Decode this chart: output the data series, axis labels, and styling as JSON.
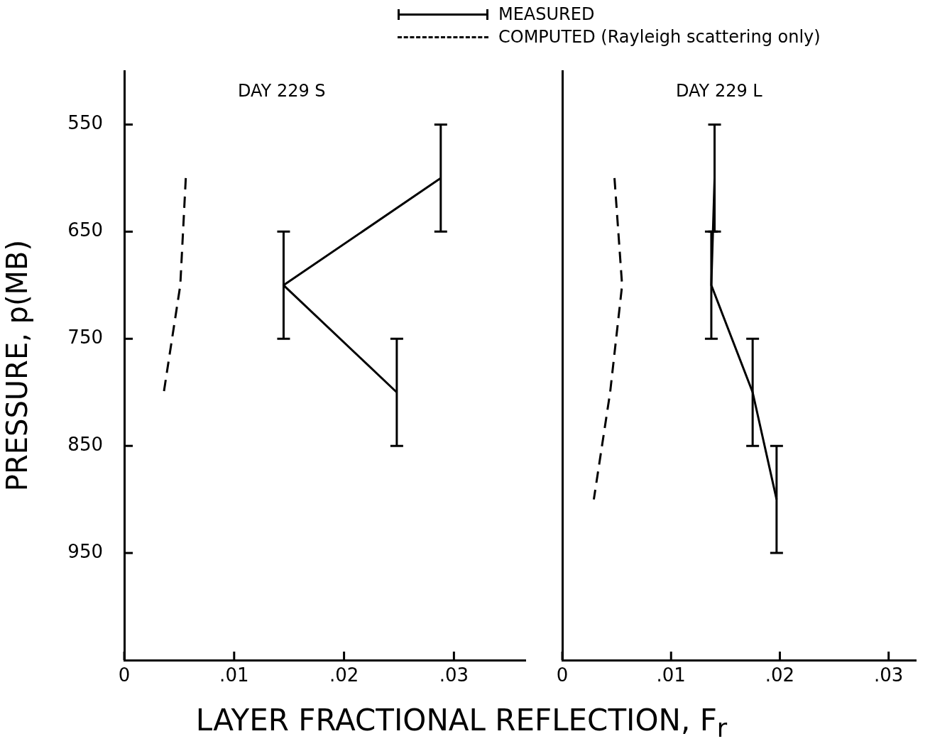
{
  "chart_data": [
    {
      "type": "line",
      "title": "DAY 229 S",
      "xlabel": "LAYER FRACTIONAL REFLECTION, F$_{r}$",
      "ylabel": "PRESSURE, p(MB)",
      "legend": "top",
      "marker": "none",
      "xlim": [
        0,
        0.0365
      ],
      "xticks": [
        0,
        {
          "value": 0.01,
          "label": ".01"
        },
        {
          "value": 0.02,
          "label": ".02"
        },
        {
          "value": 0.03,
          "label": ".03"
        }
      ],
      "ylim": [
        1050,
        500
      ],
      "yticks": [
        550,
        650,
        750,
        850,
        950
      ],
      "series": [
        {
          "name": "MEASURED",
          "type": "line",
          "line_style": "solid",
          "color": "#000000",
          "x": [
            0.0288,
            0.0145,
            0.0248
          ],
          "values": [
            600,
            700,
            800
          ],
          "errors": [
            50,
            50,
            50
          ]
        },
        {
          "name": "COMPUTED (Rayleigh scattering only)",
          "type": "line",
          "line_style": "dashed",
          "color": "#000000",
          "x": [
            0.0056,
            0.0051,
            0.0036
          ],
          "values": [
            600,
            700,
            800
          ]
        }
      ]
    },
    {
      "type": "line",
      "title": "DAY 229 L",
      "marker": "none",
      "tick_labels": "x",
      "xlim": [
        0,
        0.0325
      ],
      "xticks": [
        0,
        {
          "value": 0.01,
          "label": ".01"
        },
        {
          "value": 0.02,
          "label": ".02"
        },
        {
          "value": 0.03,
          "label": ".03"
        }
      ],
      "ylim": [
        1050,
        500
      ],
      "yticks": [
        550,
        650,
        750,
        850,
        950
      ],
      "series": [
        {
          "type": "line",
          "line_style": "solid",
          "color": "#000000",
          "x": [
            0.014,
            0.0137,
            0.0175,
            0.0197
          ],
          "values": [
            600,
            700,
            800,
            900
          ],
          "errors": [
            50,
            50,
            50,
            50
          ]
        },
        {
          "type": "line",
          "line_style": "dashed",
          "color": "#000000",
          "x": [
            0.0048,
            0.0055,
            0.0044,
            0.0029
          ],
          "values": [
            600,
            700,
            800,
            900
          ]
        }
      ]
    }
  ]
}
